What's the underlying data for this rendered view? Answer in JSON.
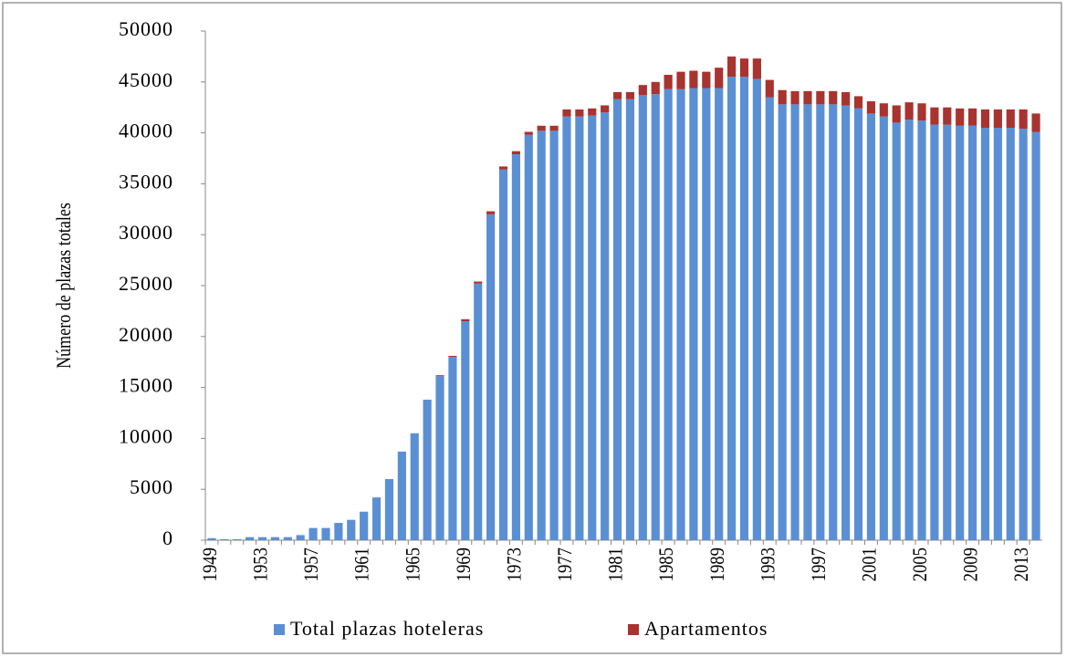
{
  "chart_data": {
    "type": "stacked_bar",
    "y_label": "Número de plazas totales",
    "categories": [
      "1949",
      null,
      null,
      null,
      "1953",
      null,
      null,
      null,
      "1957",
      null,
      null,
      null,
      "1961",
      null,
      null,
      null,
      "1965",
      null,
      null,
      null,
      "1969",
      null,
      null,
      null,
      "1973",
      null,
      null,
      null,
      "1977",
      null,
      null,
      null,
      "1981",
      null,
      null,
      null,
      "1985",
      null,
      null,
      null,
      "1989",
      null,
      null,
      null,
      "1993",
      null,
      null,
      null,
      "1997",
      null,
      null,
      null,
      "2001",
      null,
      null,
      null,
      "2005",
      null,
      null,
      null,
      "2009",
      null,
      null,
      null,
      "2013",
      null
    ],
    "series": [
      {
        "name": "Total plazas hoteleras",
        "color": "#5b8fd4",
        "values": [
          200,
          100,
          100,
          300,
          300,
          300,
          300,
          500,
          1200,
          1200,
          1700,
          2000,
          2800,
          4200,
          6000,
          8700,
          10500,
          13800,
          16100,
          18000,
          21500,
          25200,
          32000,
          36400,
          37900,
          39800,
          40200,
          40200,
          41600,
          41600,
          41700,
          42000,
          43300,
          43300,
          43700,
          43800,
          44300,
          44300,
          44400,
          44400,
          44400,
          45500,
          45500,
          45300,
          43500,
          42800,
          42800,
          42800,
          42800,
          42800,
          42700,
          42400,
          41900,
          41600,
          41000,
          41300,
          41200,
          40800,
          40800,
          40700,
          40700,
          40500,
          40500,
          40500,
          40400,
          40100
        ]
      },
      {
        "name": "Apartamentos",
        "color": "#a8332f",
        "values": [
          0,
          0,
          0,
          0,
          0,
          0,
          0,
          0,
          0,
          0,
          0,
          0,
          0,
          0,
          0,
          0,
          0,
          0,
          100,
          100,
          200,
          200,
          300,
          300,
          300,
          300,
          500,
          500,
          700,
          700,
          700,
          700,
          700,
          700,
          1000,
          1200,
          1400,
          1700,
          1700,
          1600,
          2000,
          2000,
          1800,
          2000,
          1700,
          1400,
          1300,
          1300,
          1300,
          1300,
          1300,
          1200,
          1200,
          1300,
          1700,
          1700,
          1700,
          1700,
          1700,
          1700,
          1700,
          1800,
          1800,
          1800,
          1900,
          1800
        ]
      }
    ],
    "ylim": [
      0,
      50000
    ],
    "yticks": [
      0,
      5000,
      10000,
      15000,
      20000,
      25000,
      30000,
      35000,
      40000,
      45000,
      50000
    ],
    "legend": "bottom"
  }
}
